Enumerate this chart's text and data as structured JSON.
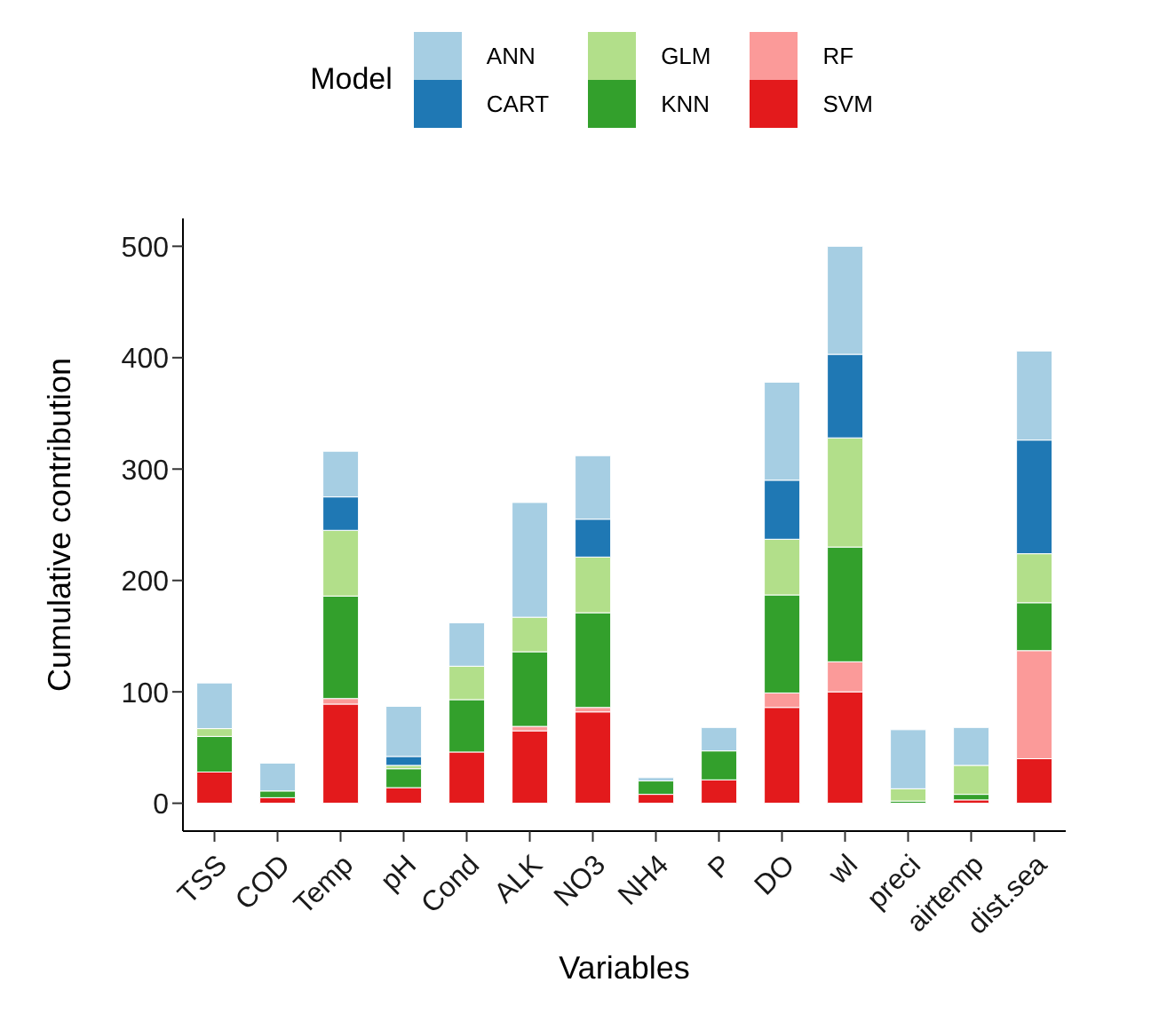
{
  "chart_data": {
    "type": "bar",
    "stacked": true,
    "xlabel": "Variables",
    "ylabel": "Cumulative contribution",
    "legend_title": "Model",
    "legend": "top",
    "categories": [
      "TSS",
      "COD",
      "Temp",
      "pH",
      "Cond",
      "ALK",
      "NO3",
      "NH4",
      "P",
      "DO",
      "wl",
      "preci",
      "airtemp",
      "dist.sea"
    ],
    "series": [
      {
        "name": "SVM",
        "color": "#e31a1c",
        "values": [
          28,
          5,
          89,
          14,
          46,
          65,
          82,
          8,
          21,
          86,
          100,
          0,
          3,
          40
        ]
      },
      {
        "name": "RF",
        "color": "#fb9a99",
        "values": [
          0,
          0,
          5,
          0,
          0,
          4,
          4,
          0,
          0,
          13,
          27,
          0,
          0,
          97
        ]
      },
      {
        "name": "KNN",
        "color": "#33a02c",
        "values": [
          32,
          6,
          92,
          17,
          47,
          67,
          85,
          12,
          26,
          88,
          103,
          2,
          5,
          43
        ]
      },
      {
        "name": "GLM",
        "color": "#b2df8a",
        "values": [
          7,
          0,
          59,
          3,
          30,
          31,
          50,
          0,
          0,
          50,
          98,
          11,
          26,
          44
        ]
      },
      {
        "name": "CART",
        "color": "#1f78b4",
        "values": [
          0,
          0,
          30,
          8,
          0,
          0,
          34,
          0,
          0,
          53,
          75,
          0,
          0,
          102
        ]
      },
      {
        "name": "ANN",
        "color": "#a6cee3",
        "values": [
          41,
          25,
          41,
          45,
          39,
          103,
          57,
          3,
          21,
          88,
          97,
          53,
          34,
          80
        ]
      }
    ],
    "ylim": [
      -25,
      525
    ],
    "yticks": [
      0,
      100,
      200,
      300,
      400,
      500
    ],
    "grid": false
  }
}
